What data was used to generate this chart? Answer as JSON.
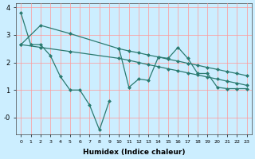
{
  "xlabel": "Humidex (Indice chaleur)",
  "bg_color": "#cceeff",
  "line_color": "#2a7a70",
  "grid_color": "#ff9999",
  "xlim": [
    -0.5,
    23.5
  ],
  "ylim": [
    -0.6,
    4.15
  ],
  "series": [
    {
      "x": [
        0,
        1,
        2,
        3,
        4,
        5,
        6,
        7,
        8,
        9
      ],
      "y": [
        3.8,
        2.65,
        2.65,
        2.25,
        1.5,
        1.0,
        1.0,
        0.45,
        -0.45,
        0.6
      ]
    },
    {
      "x": [
        0,
        2,
        5,
        10,
        11,
        12,
        13,
        14,
        15,
        16,
        17,
        18,
        19,
        20,
        21,
        22,
        23
      ],
      "y": [
        2.65,
        2.55,
        2.4,
        2.15,
        2.08,
        2.0,
        1.92,
        1.85,
        1.77,
        1.7,
        1.62,
        1.55,
        1.47,
        1.4,
        1.32,
        1.25,
        1.17
      ]
    },
    {
      "x": [
        0,
        2,
        5,
        10,
        11,
        12,
        13,
        14,
        15,
        16,
        17,
        18,
        19,
        20,
        21,
        22,
        23
      ],
      "y": [
        2.65,
        3.35,
        3.05,
        2.5,
        2.42,
        2.35,
        2.27,
        2.2,
        2.12,
        2.05,
        1.97,
        1.9,
        1.82,
        1.75,
        1.67,
        1.6,
        1.52
      ]
    },
    {
      "x": [
        10,
        11,
        12,
        13,
        14,
        15,
        16,
        17,
        18,
        19,
        20,
        21,
        22,
        23
      ],
      "y": [
        2.5,
        1.1,
        1.4,
        1.35,
        2.2,
        2.15,
        2.55,
        2.15,
        1.6,
        1.6,
        1.1,
        1.05,
        1.05,
        1.05
      ]
    }
  ]
}
